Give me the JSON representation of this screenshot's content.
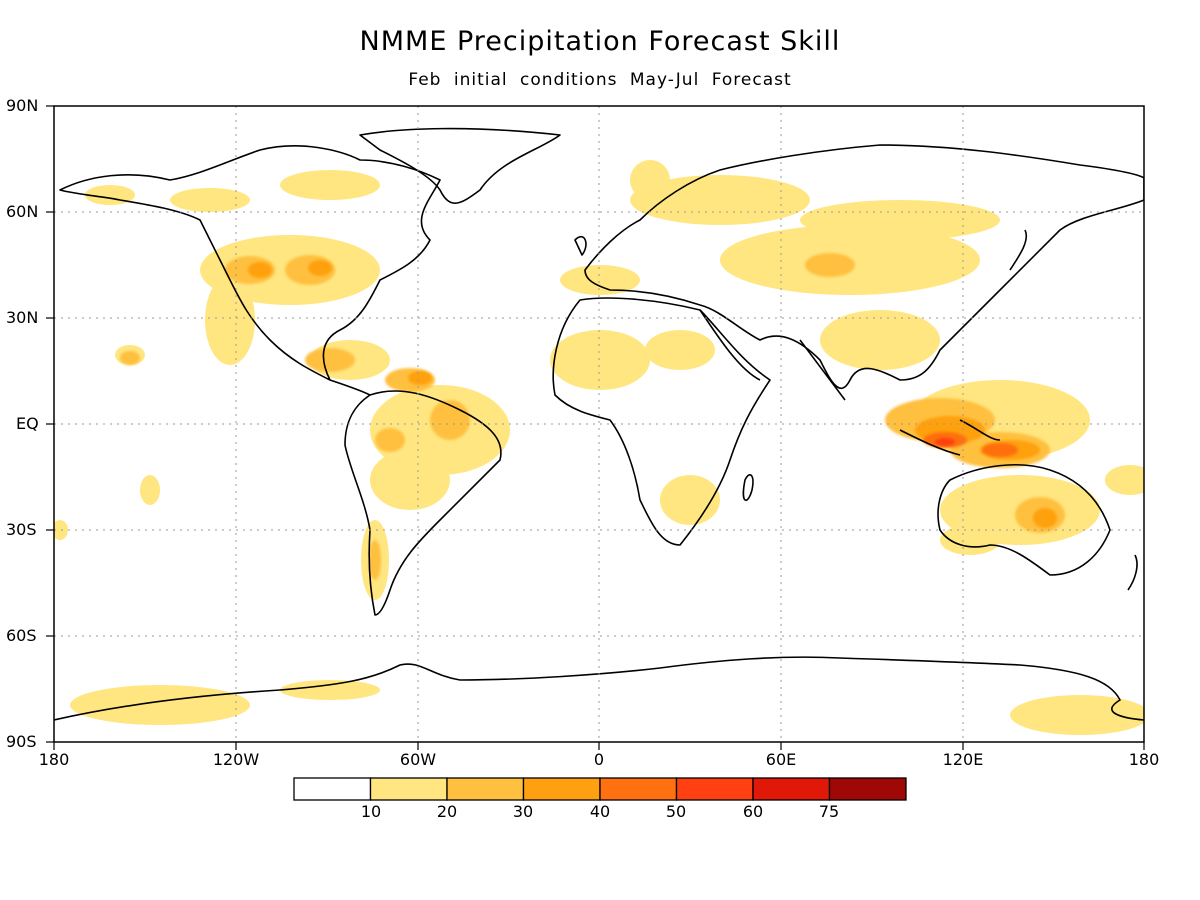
{
  "title": "NMME Precipitation Forecast Skill",
  "subtitle": "Feb initial conditions   May-Jul Forecast",
  "axes": {
    "x_ticks": [
      "180",
      "120W",
      "60W",
      "0",
      "60E",
      "120E",
      "180"
    ],
    "y_ticks": [
      "90N",
      "60N",
      "30N",
      "EQ",
      "30S",
      "60S",
      "90S"
    ]
  },
  "colorbar": {
    "labels": [
      "10",
      "20",
      "30",
      "40",
      "50",
      "60",
      "75"
    ],
    "colors": [
      "#ffffff",
      "#ffe680",
      "#ffc040",
      "#ffa010",
      "#ff7010",
      "#ff4010",
      "#e01808",
      "#a00808"
    ]
  },
  "colors": {
    "land_outline": "#000000",
    "grid": "#999999"
  }
}
